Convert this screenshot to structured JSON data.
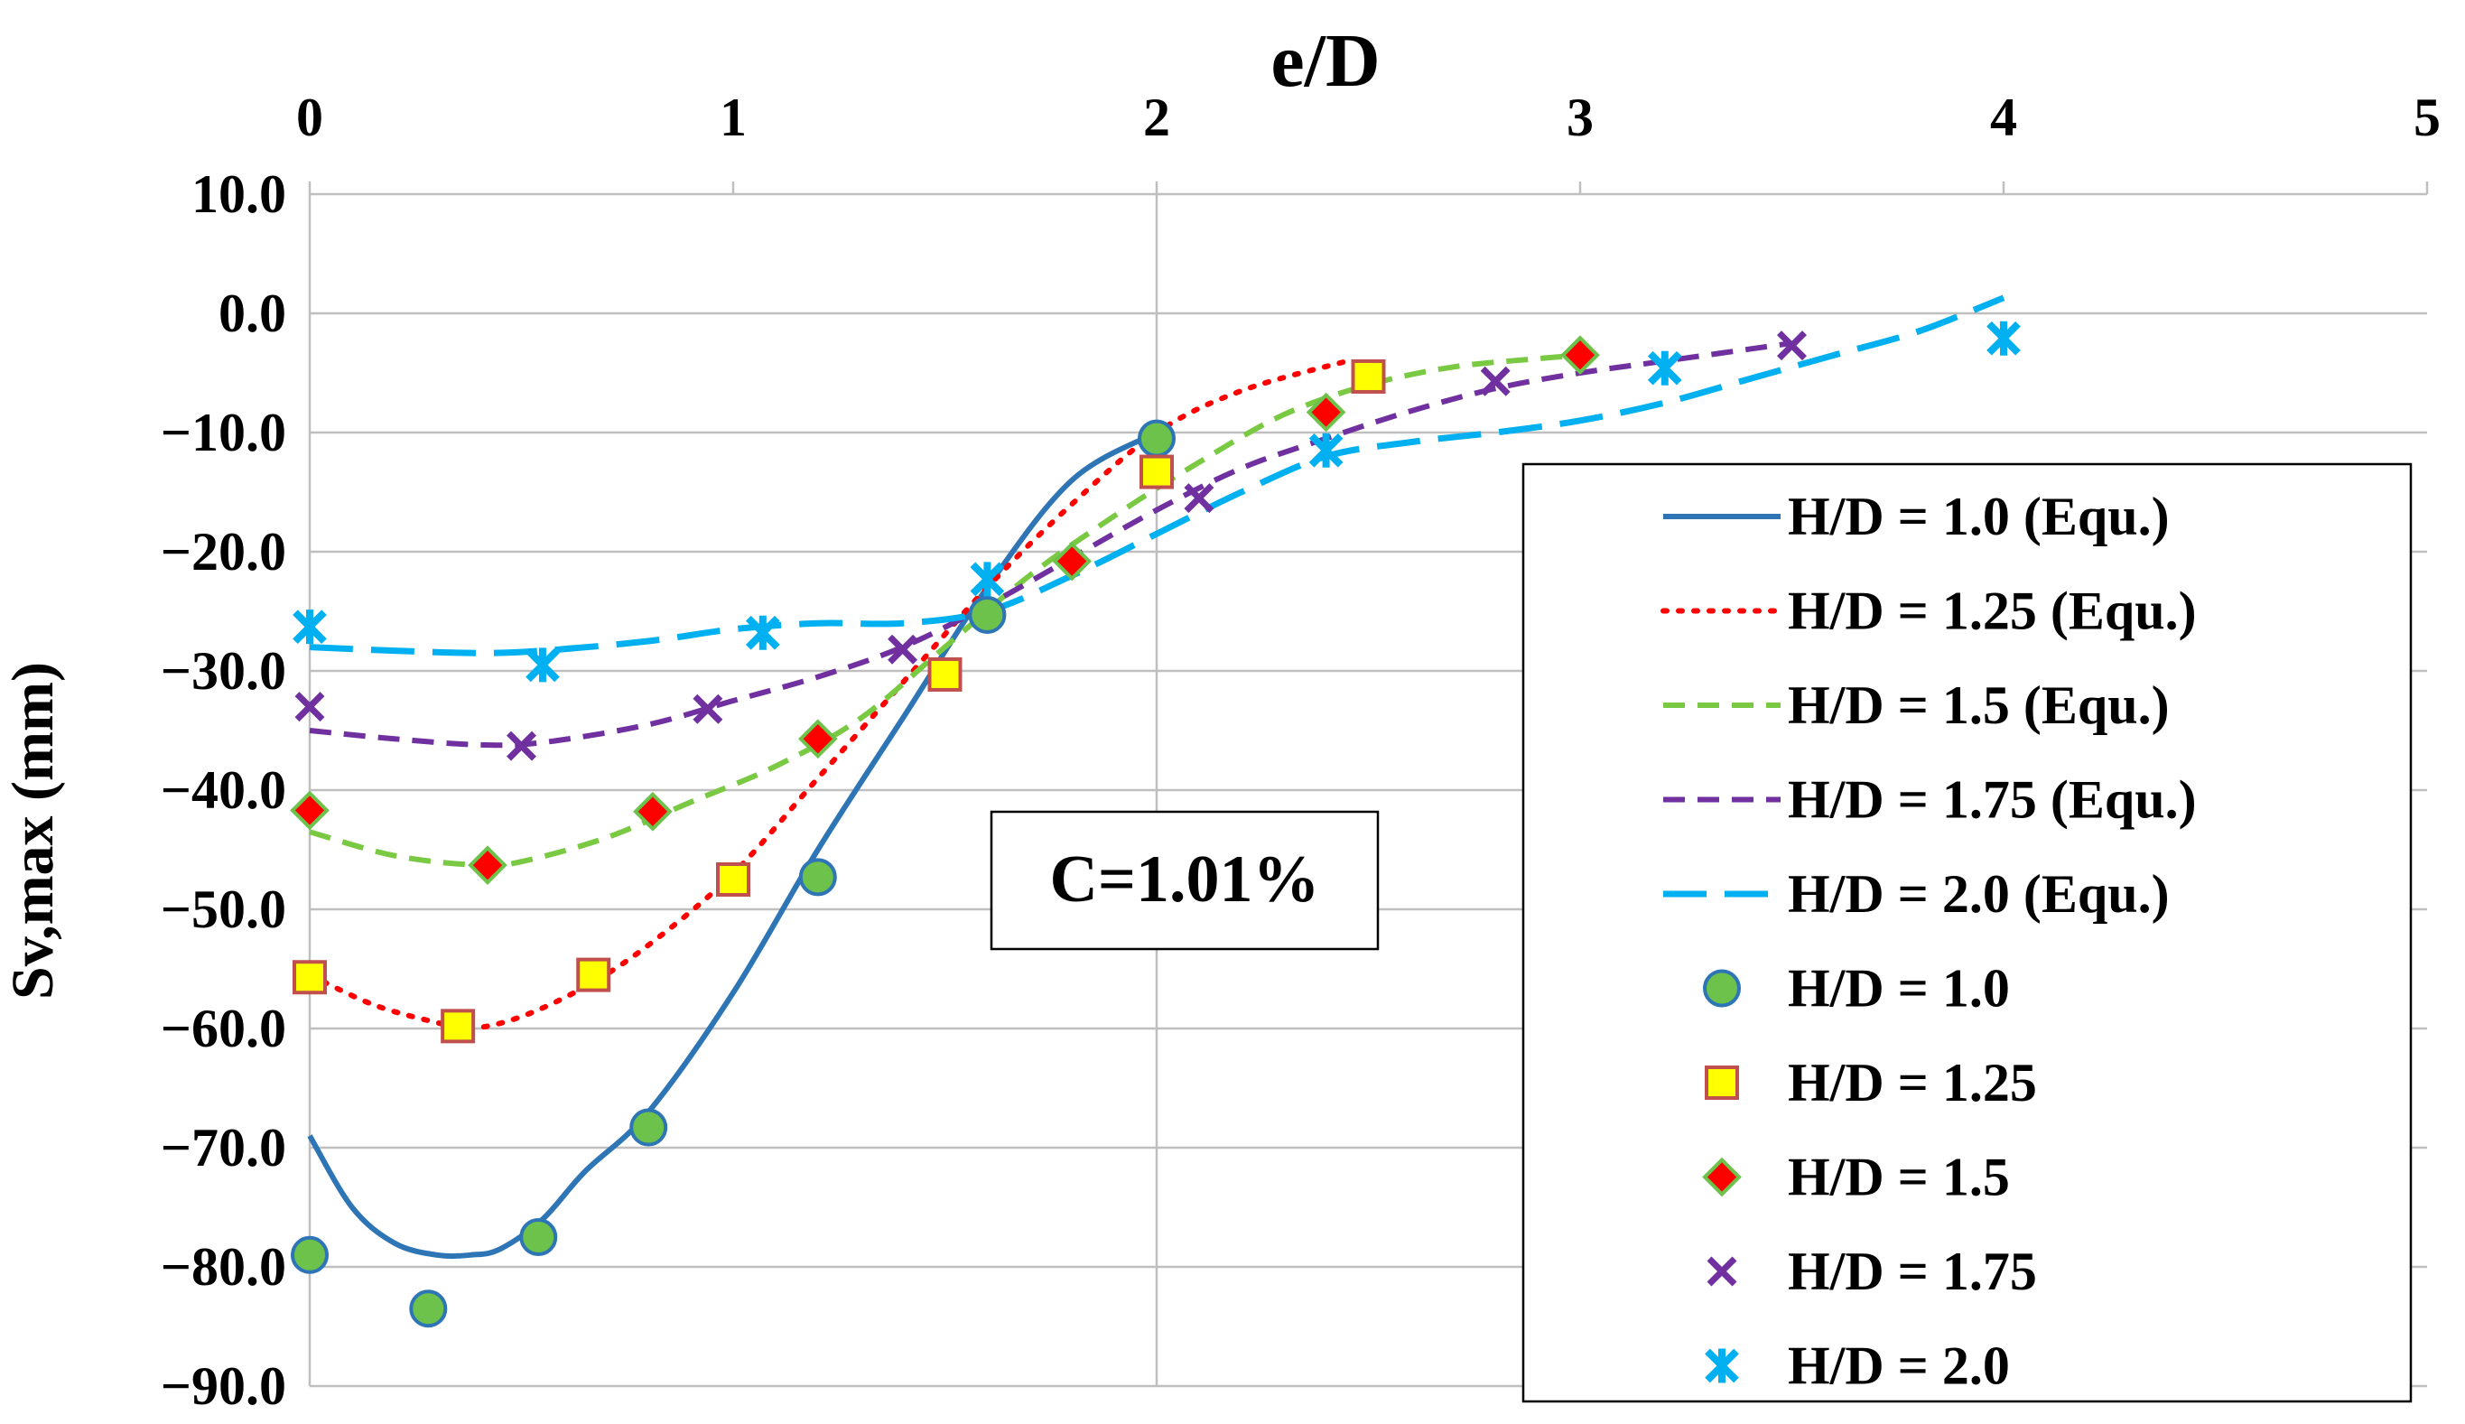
{
  "chart_data": {
    "type": "scatter",
    "xlabel": "e/D",
    "ylabel": "Sv,max (mm)",
    "xlim": [
      0,
      5
    ],
    "ylim": [
      -90,
      10
    ],
    "x_ticks": [
      "0",
      "1",
      "2",
      "3",
      "4",
      "5"
    ],
    "y_ticks": [
      "10.0",
      "0.0",
      "-10.0",
      "-20.0",
      "-30.0",
      "-40.0",
      "-50.0",
      "-60.0",
      "-70.0",
      "-80.0",
      "-90.0"
    ],
    "x_axis_position": "top",
    "grid": "horizontal",
    "legend_position": "right",
    "annotation": "C=1.01%",
    "curves": [
      {
        "name": "H/D = 1.0 (Equ.)",
        "style": "solid",
        "color": "#2E75B6",
        "x": [
          0,
          0.1,
          0.2,
          0.3,
          0.38,
          0.45,
          0.55,
          0.65,
          0.8,
          1.0,
          1.2,
          1.4,
          1.6,
          1.8,
          2.0
        ],
        "y": [
          -69,
          -75,
          -78,
          -79,
          -79,
          -78.5,
          -76,
          -72,
          -67,
          -57,
          -45,
          -34,
          -23,
          -14,
          -10
        ]
      },
      {
        "name": "H/D = 1.25 (Equ.)",
        "style": "dotted",
        "color": "#FF0000",
        "x": [
          0,
          0.15,
          0.3,
          0.38,
          0.5,
          0.65,
          0.8,
          1.0,
          1.2,
          1.4,
          1.6,
          1.8,
          2.0,
          2.2,
          2.45
        ],
        "y": [
          -55.5,
          -58,
          -59.5,
          -60,
          -59,
          -56.5,
          -53,
          -47,
          -39,
          -31,
          -23,
          -16,
          -10,
          -6.5,
          -4
        ]
      },
      {
        "name": "H/D = 1.5 (Equ.)",
        "style": "dashed",
        "color": "#7AC943",
        "x": [
          0,
          0.2,
          0.4,
          0.5,
          0.7,
          0.9,
          1.1,
          1.3,
          1.5,
          1.7,
          1.9,
          2.1,
          2.3,
          2.5,
          2.7,
          2.9,
          3.0
        ],
        "y": [
          -43.5,
          -45.5,
          -46.3,
          -46,
          -44,
          -41,
          -38,
          -34,
          -28,
          -22,
          -17,
          -12.5,
          -8.5,
          -6,
          -4.5,
          -3.8,
          -3.5
        ]
      },
      {
        "name": "H/D = 1.75 (Equ.)",
        "style": "dashed",
        "color": "#7030A0",
        "x": [
          0,
          0.2,
          0.4,
          0.55,
          0.8,
          1.0,
          1.2,
          1.4,
          1.6,
          1.8,
          2.0,
          2.2,
          2.4,
          2.6,
          2.8,
          3.0,
          3.2,
          3.5
        ],
        "y": [
          -35,
          -35.7,
          -36.2,
          -36,
          -34.5,
          -32.5,
          -30.5,
          -28,
          -24.5,
          -20.5,
          -16.5,
          -13,
          -10.5,
          -8.2,
          -6.3,
          -5,
          -4,
          -2.5
        ]
      },
      {
        "name": "H/D = 2.0 (Equ.)",
        "style": "longdash",
        "color": "#00B0F0",
        "x": [
          0,
          0.2,
          0.4,
          0.55,
          0.8,
          1.0,
          1.2,
          1.4,
          1.6,
          1.8,
          2.0,
          2.2,
          2.4,
          2.6,
          2.8,
          3.0,
          3.2,
          3.4,
          3.6,
          3.8,
          4.0
        ],
        "y": [
          -28,
          -28.3,
          -28.5,
          -28.3,
          -27.5,
          -26.5,
          -26,
          -26,
          -25,
          -22,
          -18.5,
          -15,
          -12,
          -10.8,
          -10,
          -9,
          -7.5,
          -5.5,
          -3.5,
          -1.5,
          1.3
        ]
      }
    ],
    "series": [
      {
        "name": "H/D = 1.0",
        "marker": "circle",
        "fill": "#6CC24A",
        "stroke": "#2E75B6",
        "x": [
          0,
          0.28,
          0.54,
          0.8,
          1.2,
          1.6,
          2.0
        ],
        "y": [
          -79,
          -83.5,
          -77.5,
          -68.3,
          -47.3,
          -25.3,
          -10.5
        ]
      },
      {
        "name": "H/D = 1.25",
        "marker": "square",
        "fill": "#FFFF00",
        "stroke": "#C0504D",
        "x": [
          0,
          0.35,
          0.67,
          1.0,
          1.5,
          2.0,
          2.5
        ],
        "y": [
          -55.7,
          -59.8,
          -55.5,
          -47.5,
          -30.3,
          -13.3,
          -5.3
        ]
      },
      {
        "name": "H/D = 1.5",
        "marker": "diamond",
        "fill": "#FF0000",
        "stroke": "#6CC24A",
        "x": [
          0,
          0.42,
          0.81,
          1.2,
          1.8,
          2.4,
          3.0
        ],
        "y": [
          -41.7,
          -46.3,
          -41.8,
          -35.7,
          -20.8,
          -8.3,
          -3.5
        ]
      },
      {
        "name": "H/D = 1.75",
        "marker": "x",
        "fill": "#7030A0",
        "stroke": "#7030A0",
        "x": [
          0,
          0.5,
          0.94,
          1.4,
          2.1,
          2.8,
          3.5
        ],
        "y": [
          -33,
          -36.3,
          -33.2,
          -28.2,
          -15.5,
          -5.7,
          -2.7
        ]
      },
      {
        "name": "H/D = 2.0",
        "marker": "star",
        "fill": "#00B0F0",
        "stroke": "#00B0F0",
        "x": [
          0,
          0.55,
          1.07,
          1.6,
          2.4,
          3.2,
          4.0
        ],
        "y": [
          -26.3,
          -29.5,
          -26.8,
          -22.3,
          -11.5,
          -4.6,
          -2.1
        ]
      }
    ]
  }
}
